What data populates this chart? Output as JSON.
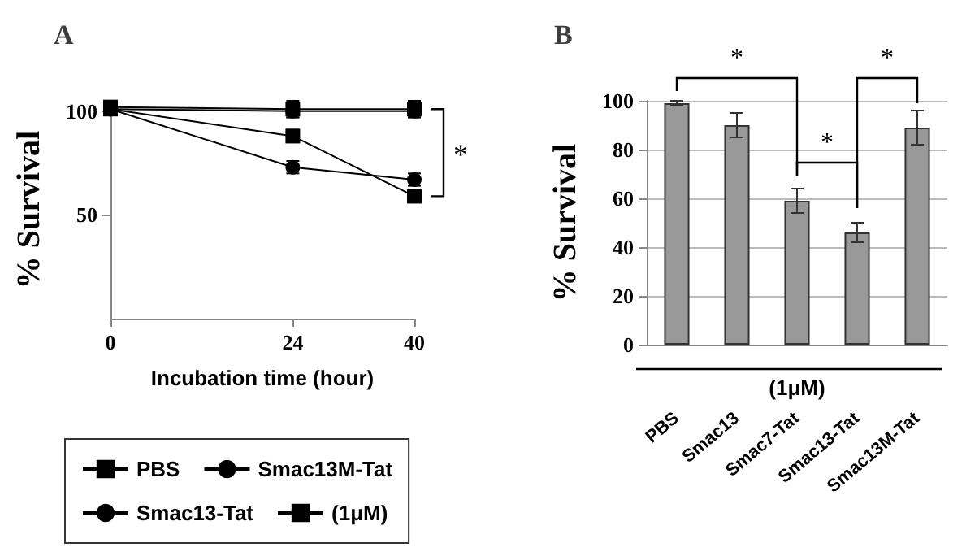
{
  "chart_data": [
    {
      "type": "line",
      "title": "A",
      "xlabel": "Incubation time (hour)",
      "ylabel": "% Survival",
      "x": [
        0,
        24,
        40
      ],
      "xlim": [
        0,
        40
      ],
      "xticks": [
        0,
        24,
        40
      ],
      "ylim": [
        0,
        105
      ],
      "yticks": [
        50,
        100
      ],
      "series": [
        {
          "name": "PBS",
          "color": "#000000",
          "marker": "square",
          "values": [
            102,
            101,
            101
          ],
          "errors": [
            3,
            4,
            4
          ]
        },
        {
          "name": "Smac13M-Tat",
          "color": "#000000",
          "marker": "circle",
          "values": [
            101,
            100,
            100
          ],
          "errors": [
            3,
            3,
            3
          ]
        },
        {
          "name": "Smac13-Tat",
          "color": "#000000",
          "marker": "circle",
          "values": [
            101,
            73,
            67
          ],
          "errors": [
            3,
            3,
            3
          ]
        },
        {
          "name": "(1μM)",
          "color": "#000000",
          "marker": "square",
          "values": [
            101,
            88,
            59
          ],
          "errors": [
            3,
            3,
            3
          ]
        }
      ],
      "legend": "bottom",
      "grid": false,
      "annotations": [
        "*"
      ]
    },
    {
      "type": "bar",
      "title": "B",
      "xlabel": "(1μM)",
      "ylabel": "% Survival",
      "categories": [
        "PBS",
        "Smac13",
        "Smac7-Tat",
        "Smac13-Tat",
        "Smac13M-Tat"
      ],
      "values": [
        99,
        90,
        59,
        46,
        89
      ],
      "errors": [
        1,
        5,
        5,
        4,
        7
      ],
      "color": "#999999",
      "ylim": [
        0,
        100
      ],
      "yticks": [
        0,
        20,
        40,
        60,
        80,
        100
      ],
      "grid": "y",
      "annotations": [
        "*",
        "*",
        "*"
      ]
    }
  ]
}
